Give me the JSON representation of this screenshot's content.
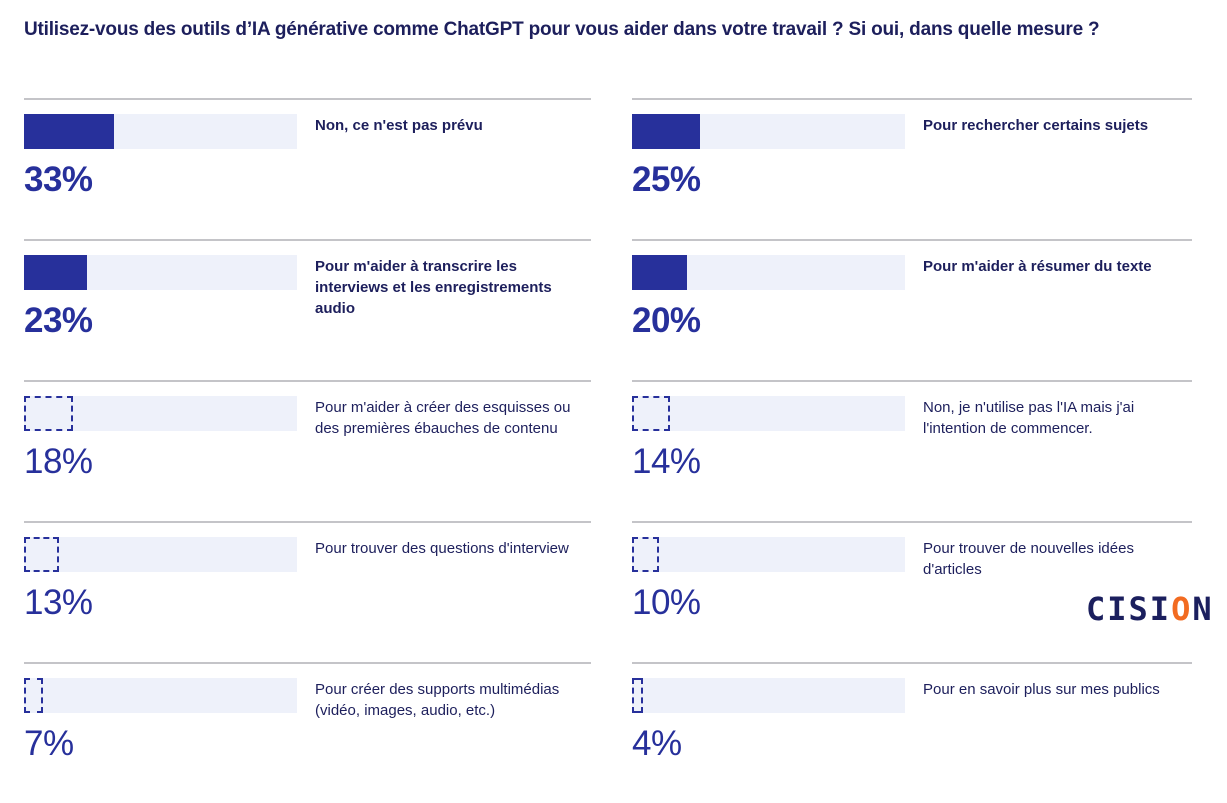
{
  "title": "Utilisez-vous des outils d’IA générative comme ChatGPT pour vous aider dans votre travail ? Si oui, dans quelle mesure ?",
  "logo": {
    "text_pre": "CISI",
    "text_accent": "O",
    "text_post": "N",
    "accent_color": "#f26b21",
    "brand_color": "#1b1f5e"
  },
  "colors": {
    "bar": "#27309b",
    "track": "#eef1fa",
    "text": "#1d1f5c"
  },
  "chart_data": {
    "type": "bar",
    "orientation": "horizontal",
    "xlim": [
      0,
      100
    ],
    "categories": [
      "Non, ce n'est pas prévu",
      "Pour rechercher certains sujets",
      "Pour m'aider à transcrire les interviews et les enregistrements audio",
      "Pour m'aider à résumer du texte",
      "Pour m'aider à créer des esquisses ou des premières ébauches de contenu",
      "Non, je n'utilise pas l'IA mais j'ai l'intention de commencer.",
      "Pour trouver des questions d'interview",
      "Pour trouver de nouvelles idées d'articles",
      "Pour créer des supports multimédias (vidéo, images, audio, etc.)",
      "Pour en savoir plus sur mes publics"
    ],
    "values": [
      33,
      25,
      23,
      20,
      18,
      14,
      13,
      10,
      7,
      4
    ],
    "value_labels": [
      "33%",
      "25%",
      "23%",
      "20%",
      "18%",
      "14%",
      "13%",
      "10%",
      "7%",
      "4%"
    ],
    "highlight": [
      true,
      true,
      true,
      true,
      false,
      false,
      false,
      false,
      false,
      false
    ]
  }
}
